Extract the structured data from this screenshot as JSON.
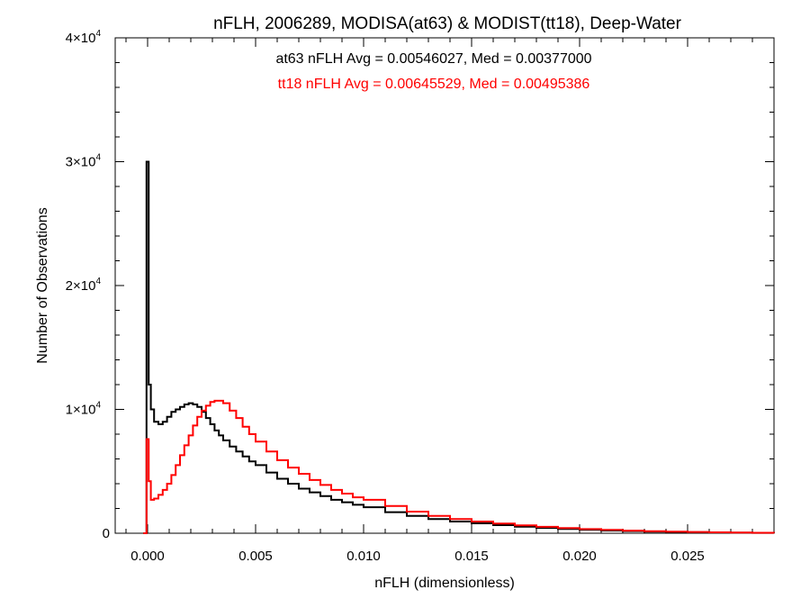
{
  "chart_data": {
    "type": "line",
    "title": "nFLH, 2006289, MODISA(at63) & MODIST(tt18), Deep-Water",
    "xlabel": "nFLH (dimensionless)",
    "ylabel": "Number of Observations",
    "xlim": [
      -0.0015,
      0.029
    ],
    "ylim": [
      0,
      40000
    ],
    "grid": false,
    "step": true,
    "x_ticks": [
      {
        "value": 0.0,
        "label": "0.000"
      },
      {
        "value": 0.005,
        "label": "0.005"
      },
      {
        "value": 0.01,
        "label": "0.010"
      },
      {
        "value": 0.015,
        "label": "0.015"
      },
      {
        "value": 0.02,
        "label": "0.020"
      },
      {
        "value": 0.025,
        "label": "0.025"
      }
    ],
    "y_ticks": [
      {
        "value": 0,
        "mantissa": "0",
        "exponent": ""
      },
      {
        "value": 10000,
        "mantissa": "1×10",
        "exponent": "4"
      },
      {
        "value": 20000,
        "mantissa": "2×10",
        "exponent": "4"
      },
      {
        "value": 30000,
        "mantissa": "3×10",
        "exponent": "4"
      },
      {
        "value": 40000,
        "mantissa": "4×10",
        "exponent": "4"
      }
    ],
    "annotations": [
      {
        "text": "at63 nFLH Avg = 0.00546027, Med = 0.00377000",
        "color": "#000000"
      },
      {
        "text": "tt18 nFLH Avg = 0.00645529, Med = 0.00495386",
        "color": "#ff0000"
      }
    ],
    "series": [
      {
        "color": "#000000",
        "x": [
          -0.0002,
          -5e-05,
          5e-05,
          0.00015,
          0.0003,
          0.0005,
          0.0007,
          0.0009,
          0.0011,
          0.0013,
          0.0015,
          0.0017,
          0.0019,
          0.0021,
          0.0023,
          0.0025,
          0.0027,
          0.0029,
          0.0031,
          0.0033,
          0.0035,
          0.0038,
          0.0041,
          0.0044,
          0.0047,
          0.005,
          0.0055,
          0.006,
          0.0065,
          0.007,
          0.0075,
          0.008,
          0.0085,
          0.009,
          0.0095,
          0.01,
          0.011,
          0.012,
          0.013,
          0.014,
          0.015,
          0.016,
          0.017,
          0.018,
          0.019,
          0.02,
          0.021,
          0.022,
          0.023,
          0.024,
          0.025,
          0.026,
          0.027,
          0.028,
          0.029
        ],
        "y": [
          0,
          30000,
          12000,
          10000,
          9000,
          8800,
          9000,
          9400,
          9800,
          10000,
          10200,
          10400,
          10500,
          10400,
          10200,
          9800,
          9300,
          8800,
          8300,
          7900,
          7500,
          7000,
          6600,
          6200,
          5800,
          5500,
          4900,
          4400,
          4000,
          3600,
          3300,
          3000,
          2700,
          2500,
          2300,
          2100,
          1700,
          1400,
          1150,
          950,
          800,
          650,
          530,
          430,
          350,
          280,
          220,
          170,
          130,
          100,
          80,
          60,
          45,
          30,
          20
        ]
      },
      {
        "color": "#ff0000",
        "x": [
          -0.0002,
          -5e-05,
          5e-05,
          0.00015,
          0.0003,
          0.0005,
          0.0007,
          0.0009,
          0.0011,
          0.0013,
          0.0015,
          0.0017,
          0.0019,
          0.0021,
          0.0023,
          0.0025,
          0.0027,
          0.0029,
          0.0031,
          0.0033,
          0.0035,
          0.0038,
          0.0041,
          0.0044,
          0.0047,
          0.005,
          0.0055,
          0.006,
          0.0065,
          0.007,
          0.0075,
          0.008,
          0.0085,
          0.009,
          0.0095,
          0.01,
          0.011,
          0.012,
          0.013,
          0.014,
          0.015,
          0.016,
          0.017,
          0.018,
          0.019,
          0.02,
          0.021,
          0.022,
          0.023,
          0.024,
          0.025,
          0.026,
          0.027,
          0.028,
          0.029
        ],
        "y": [
          0,
          7600,
          4200,
          2700,
          2800,
          3100,
          3500,
          4000,
          4700,
          5500,
          6300,
          7100,
          7900,
          8700,
          9400,
          9900,
          10300,
          10600,
          10700,
          10700,
          10500,
          9900,
          9300,
          8600,
          8000,
          7400,
          6600,
          5900,
          5300,
          4800,
          4300,
          3900,
          3500,
          3200,
          2900,
          2700,
          2200,
          1750,
          1400,
          1150,
          950,
          780,
          640,
          520,
          420,
          340,
          270,
          210,
          165,
          130,
          100,
          75,
          55,
          40,
          28
        ]
      }
    ]
  }
}
